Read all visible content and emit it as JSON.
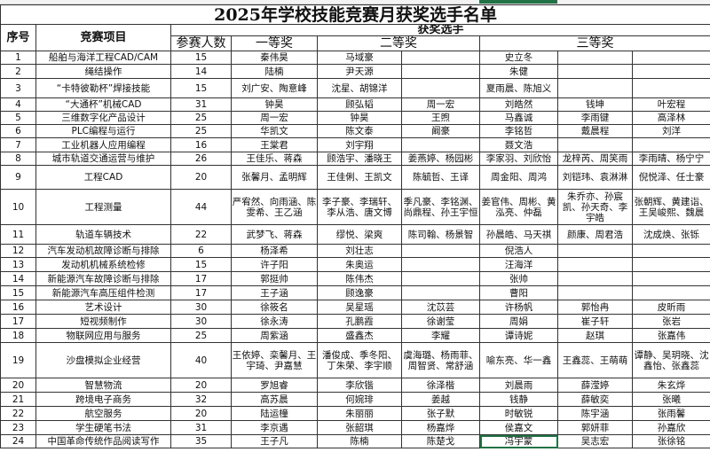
{
  "title": "2025年学校技能竞赛月获奖选手名单",
  "headers": {
    "no": "序号",
    "project": "竞赛项目",
    "winners": "获奖选手",
    "count": "参赛人数",
    "first": "一等奖",
    "second": "二等奖",
    "third": "三等奖"
  },
  "accent_color": "#217346",
  "rows": [
    {
      "no": "1",
      "project": "船舶与海洋工程CAD/CAM",
      "count": "15",
      "first": "秦伟昊",
      "second": [
        "马域豪",
        ""
      ],
      "third": [
        "史立冬",
        "",
        ""
      ]
    },
    {
      "no": "2",
      "project": "绳结操作",
      "count": "14",
      "first": "陆楠",
      "second": [
        "尹天源",
        ""
      ],
      "third": [
        "朱健",
        "",
        ""
      ]
    },
    {
      "no": "3",
      "project": "“卡特彼勒杯”焊接技能",
      "count": "15",
      "first": "刘广安、陶意峰",
      "second": [
        "沈星、胡锦洋",
        ""
      ],
      "third": [
        "夏雨晨、陈旭义",
        "",
        ""
      ]
    },
    {
      "no": "4",
      "project": "“大通杯”机械CAD",
      "count": "31",
      "first": "钟昊",
      "second": [
        "顾弘韬",
        "周一宏"
      ],
      "third": [
        "刘皓然",
        "钱坤",
        "叶宏程"
      ]
    },
    {
      "no": "5",
      "project": "三维数字化产品设计",
      "count": "25",
      "first": "周一宏",
      "second": [
        "钟昊",
        "王煦"
      ],
      "third": [
        "马鑫诚",
        "李雨键",
        "高泽林"
      ]
    },
    {
      "no": "6",
      "project": "PLC编程与运行",
      "count": "25",
      "first": "华凯文",
      "second": [
        "陈文泰",
        "阚豪"
      ],
      "third": [
        "李铭哲",
        "戴晨程",
        "刘洋"
      ]
    },
    {
      "no": "7",
      "project": "工业机器人应用编程",
      "count": "16",
      "first": "王棠君",
      "second": [
        "刘宇翔",
        ""
      ],
      "third": [
        "聂文浩",
        "",
        ""
      ]
    },
    {
      "no": "8",
      "project": "城市轨道交通运营与维护",
      "count": "26",
      "first": "王佳乐、蒋森",
      "second": [
        "顾浩宇、潘晓王",
        "姜燕婷、杨园彬"
      ],
      "third": [
        "李家羽、刘欣怡",
        "龙梓芮、周笑雨",
        "李雨晴、杨宁宁"
      ]
    },
    {
      "no": "9",
      "project": "工程CAD",
      "count": "20",
      "first": "张馨月、孟明辉",
      "second": [
        "王佳俐、王凯文",
        "陈毓哲、王译"
      ],
      "third": [
        "周金阳、周鸿",
        "刘铠玮、袁淋淋",
        "倪悦泽、任士豪"
      ]
    },
    {
      "no": "10",
      "project": "工程测量",
      "count": "44",
      "first": "严宥然、向雨涵、陈雯希、王乙涵",
      "second": [
        "李子豪、李瑞轩、李从浩、唐文博",
        "季凡豪、李铭渊、尚鼎程、孙王宇恒"
      ],
      "third": [
        "姜官伟、周彬、黄泓亮、仲磊",
        "朱乔亦、孙宸凯、孙天奇、李宇皓",
        "张朝辉、黄建诣、王吴峻熙、魏晨"
      ]
    },
    {
      "no": "11",
      "project": "轨道车辆技术",
      "count": "22",
      "first": "武梦飞、蒋森",
      "second": [
        "缪悦、梁爽",
        "陈司翰、杨景智"
      ],
      "third": [
        "孙晨皓、马天祺",
        "颜康、周君浩",
        "沈成焕、张铄"
      ]
    },
    {
      "no": "12",
      "project": "汽车发动机故障诊断与排除",
      "count": "6",
      "first": "杨泽希",
      "second": [
        "刘壮志",
        ""
      ],
      "third": [
        "倪浩人",
        "",
        ""
      ]
    },
    {
      "no": "13",
      "project": "发动机机械系统检修",
      "count": "15",
      "first": "许子阳",
      "second": [
        "朱奥运",
        ""
      ],
      "third": [
        "汪海洋",
        "",
        ""
      ]
    },
    {
      "no": "14",
      "project": "新能源汽车故障诊断与排除",
      "count": "17",
      "first": "郭挺帅",
      "second": [
        "陈伟杰",
        ""
      ],
      "third": [
        "张帅",
        "",
        ""
      ]
    },
    {
      "no": "15",
      "project": "新能源汽车高压组件检测",
      "count": "17",
      "first": "王子涵",
      "second": [
        "顾逸豪",
        ""
      ],
      "third": [
        "曹阳",
        "",
        ""
      ]
    },
    {
      "no": "16",
      "project": "艺术设计",
      "count": "30",
      "first": "徐筱名",
      "second": [
        "吴星瑶",
        "沈苡芸"
      ],
      "third": [
        "许杨帆",
        "郭怡冉",
        "皮昕雨"
      ]
    },
    {
      "no": "17",
      "project": "短视频制作",
      "count": "30",
      "first": "徐永涛",
      "second": [
        "孔鹏霞",
        "徐谢莹"
      ],
      "third": [
        "周娟",
        "崔子轩",
        "张岩"
      ]
    },
    {
      "no": "18",
      "project": "物联网应用与服务",
      "count": "25",
      "first": "周紫涵",
      "second": [
        "盛鑫杰",
        "李耀"
      ],
      "third": [
        "谭诗妮",
        "赵琪",
        "张嘉伟"
      ]
    },
    {
      "no": "19",
      "project": "沙盘模拟企业经营",
      "count": "40",
      "first": "王依婷、栾馨月、王宇琦、尹嘉慧",
      "second": [
        "潘俊成、季冬阳、丁朱荣、李宇顺",
        "虞海璐、杨雨菲、周智贤、常舒涵"
      ],
      "third": [
        "喻东亮、华一鑫",
        "王鑫蕊、王萌萌",
        "谭静、吴玥晓、沈鑫怡、张鑫蕊"
      ]
    },
    {
      "no": "20",
      "project": "智慧物流",
      "count": "20",
      "first": "罗旭睿",
      "second": [
        "李欣锴",
        "徐泽楷"
      ],
      "third": [
        "刘晨雨",
        "薛滢婷",
        "朱玄烨"
      ]
    },
    {
      "no": "21",
      "project": "跨境电子商务",
      "count": "32",
      "first": "高苏晨",
      "second": [
        "何婉琲",
        "姜越"
      ],
      "third": [
        "钱静",
        "薛敏奕",
        "张曦"
      ]
    },
    {
      "no": "22",
      "project": "航空服务",
      "count": "20",
      "first": "陆运橦",
      "second": [
        "朱丽丽",
        "张子默"
      ],
      "third": [
        "时敏锐",
        "陈宇涵",
        "张雨馨"
      ]
    },
    {
      "no": "23",
      "project": "学生硬笔书法",
      "count": "31",
      "first": "李京遇",
      "second": [
        "张韶琪",
        "杨嘉烨"
      ],
      "third": [
        "侯嘉文",
        "郭妍菲",
        "孙嘉欣"
      ]
    },
    {
      "no": "24",
      "project": "中国革命传统作品阅读写作",
      "count": "35",
      "first": "王子凡",
      "second": [
        "陈楠",
        "陈楚戈"
      ],
      "third": [
        "冯宇蒙",
        "吴志宏",
        "张徐铭"
      ]
    }
  ]
}
